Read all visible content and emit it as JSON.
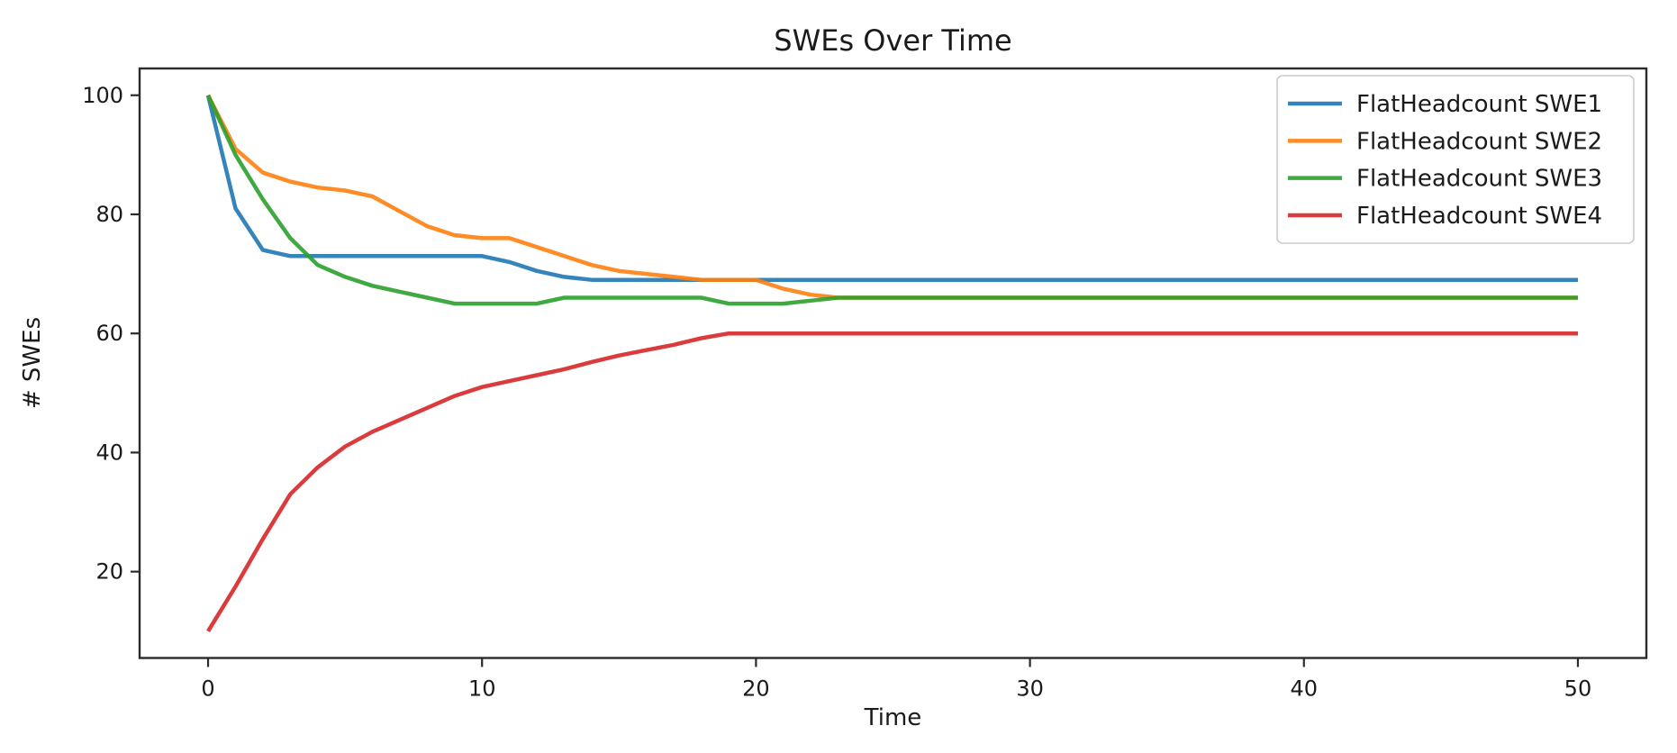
{
  "figure": {
    "title": "SWEs Over Time",
    "xlabel": "Time",
    "ylabel": "# SWEs",
    "background": "#ffffff",
    "text_color": "#1a1a1a",
    "spine_color": "#2b2b2b",
    "legend": {
      "border_color": "#cccccc",
      "background": "#ffffff"
    }
  },
  "chart_data": {
    "type": "line",
    "title": "SWEs Over Time",
    "xlabel": "Time",
    "ylabel": "# SWEs",
    "xlim": [
      -2.5,
      52.5
    ],
    "ylim": [
      5.5,
      104.5
    ],
    "xticks": [
      0,
      10,
      20,
      30,
      40,
      50
    ],
    "yticks": [
      20,
      40,
      60,
      80,
      100
    ],
    "grid": false,
    "legend_position": "upper right",
    "line_width": 4.5,
    "x": [
      0,
      1,
      2,
      3,
      4,
      5,
      6,
      7,
      8,
      9,
      10,
      11,
      12,
      13,
      14,
      15,
      16,
      17,
      18,
      19,
      20,
      21,
      22,
      23,
      24,
      25,
      26,
      27,
      28,
      29,
      30,
      31,
      32,
      33,
      34,
      35,
      36,
      37,
      38,
      39,
      40,
      41,
      42,
      43,
      44,
      45,
      46,
      47,
      48,
      49,
      50
    ],
    "series": [
      {
        "name": "FlatHeadcount SWE1",
        "color": "#1f77b4",
        "values": [
          100,
          81,
          74,
          73,
          73,
          73,
          73,
          73,
          73,
          73,
          73,
          72,
          70.5,
          69.5,
          69,
          69,
          69,
          69,
          69,
          69,
          69,
          69,
          69,
          69,
          69,
          69,
          69,
          69,
          69,
          69,
          69,
          69,
          69,
          69,
          69,
          69,
          69,
          69,
          69,
          69,
          69,
          69,
          69,
          69,
          69,
          69,
          69,
          69,
          69,
          69,
          69
        ]
      },
      {
        "name": "FlatHeadcount SWE2",
        "color": "#ff7f0e",
        "values": [
          100,
          91,
          87,
          85.5,
          84.5,
          84,
          83,
          80.5,
          78,
          76.5,
          76,
          76,
          74.5,
          73,
          71.5,
          70.5,
          70,
          69.5,
          69,
          69,
          69,
          67.5,
          66.5,
          66,
          66,
          66,
          66,
          66,
          66,
          66,
          66,
          66,
          66,
          66,
          66,
          66,
          66,
          66,
          66,
          66,
          66,
          66,
          66,
          66,
          66,
          66,
          66,
          66,
          66,
          66,
          66
        ]
      },
      {
        "name": "FlatHeadcount SWE3",
        "color": "#2ca02c",
        "values": [
          100,
          90,
          82.5,
          76,
          71.5,
          69.5,
          68,
          67,
          66,
          65,
          65,
          65,
          65,
          66,
          66,
          66,
          66,
          66,
          66,
          65,
          65,
          65,
          65.5,
          66,
          66,
          66,
          66,
          66,
          66,
          66,
          66,
          66,
          66,
          66,
          66,
          66,
          66,
          66,
          66,
          66,
          66,
          66,
          66,
          66,
          66,
          66,
          66,
          66,
          66,
          66,
          66
        ]
      },
      {
        "name": "FlatHeadcount SWE4",
        "color": "#d62728",
        "values": [
          10,
          17.5,
          25.5,
          33,
          37.5,
          41,
          43.5,
          45.5,
          47.5,
          49.5,
          51,
          52,
          53,
          54,
          55.2,
          56.3,
          57.2,
          58.1,
          59.2,
          60,
          60,
          60,
          60,
          60,
          60,
          60,
          60,
          60,
          60,
          60,
          60,
          60,
          60,
          60,
          60,
          60,
          60,
          60,
          60,
          60,
          60,
          60,
          60,
          60,
          60,
          60,
          60,
          60,
          60,
          60,
          60
        ]
      }
    ]
  }
}
